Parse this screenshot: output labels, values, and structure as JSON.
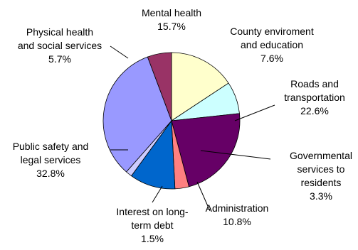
{
  "chart_data": {
    "type": "pie",
    "title": "",
    "slices": [
      {
        "label_lines": [
          "Mental health",
          "15.7%"
        ],
        "value": 15.7,
        "color": "#FFFFCC"
      },
      {
        "label_lines": [
          "County enviroment",
          "and education",
          "7.6%"
        ],
        "value": 7.6,
        "color": "#CCFFFF"
      },
      {
        "label_lines": [
          "Roads and",
          "transportation",
          "22.6%"
        ],
        "value": 22.6,
        "color": "#660066"
      },
      {
        "label_lines": [
          "Governmental",
          "services to",
          "residents",
          "3.3%"
        ],
        "value": 3.3,
        "color": "#FF8080"
      },
      {
        "label_lines": [
          "Administration",
          "10.8%"
        ],
        "value": 10.8,
        "color": "#0066CC"
      },
      {
        "label_lines": [
          "Interest on long-",
          "term debt",
          "1.5%"
        ],
        "value": 1.5,
        "color": "#CCCCFF"
      },
      {
        "label_lines": [
          "Public safety and",
          "legal services",
          "32.8%"
        ],
        "value": 32.8,
        "color": "#9999FF"
      },
      {
        "label_lines": [
          "Physical health",
          "and social services",
          "5.7%"
        ],
        "value": 5.7,
        "color": "#993366"
      }
    ]
  }
}
